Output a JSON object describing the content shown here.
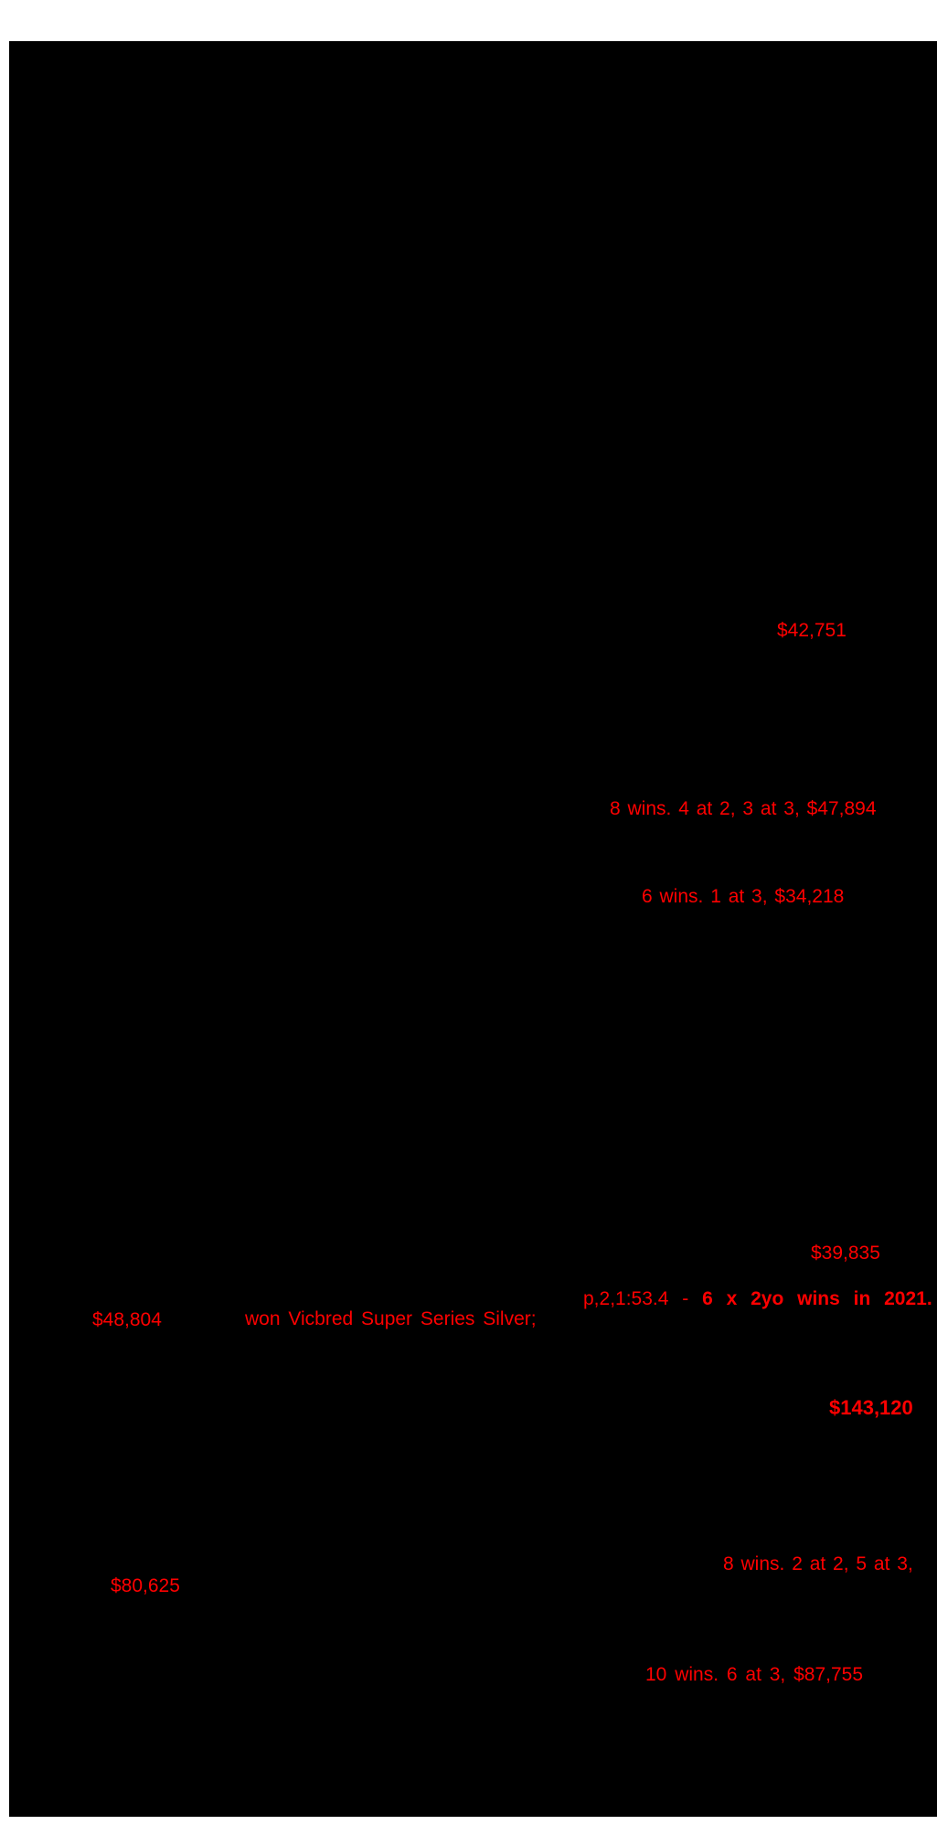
{
  "colors": {
    "page_background": "#ffffff",
    "scan_background": "#000000",
    "highlight_text": "#ff0000"
  },
  "fragments": [
    {
      "name": "earnings-1",
      "text": "$42,751"
    },
    {
      "name": "record-1",
      "text": "8 wins. 4 at 2, 3 at 3, $47,894"
    },
    {
      "name": "record-2",
      "text": "6 wins. 1 at 3, $34,218"
    },
    {
      "name": "earnings-2",
      "text": "$39,835"
    },
    {
      "name": "record-3",
      "prefix": "p,2,1:53.4 - ",
      "bold_text": "6 x 2yo wins in 2021."
    },
    {
      "name": "earnings-3",
      "text": "$48,804"
    },
    {
      "name": "race-note",
      "text": "won Vicbred Super Series Silver;"
    },
    {
      "name": "earnings-4",
      "text": "$143,120"
    },
    {
      "name": "record-4",
      "text": "8 wins. 2 at 2, 5 at 3,"
    },
    {
      "name": "earnings-5",
      "text": "$80,625"
    },
    {
      "name": "record-5",
      "text": "10 wins. 6 at 3, $87,755"
    }
  ]
}
